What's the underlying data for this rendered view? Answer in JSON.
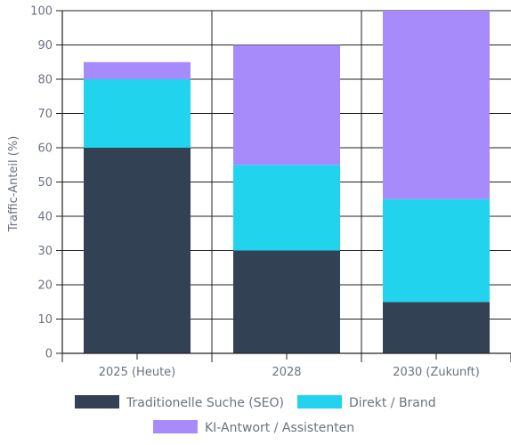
{
  "chart_data": {
    "type": "bar",
    "stacked": true,
    "categories": [
      "2025 (Heute)",
      "2028",
      "2030 (Zukunft)"
    ],
    "series": [
      {
        "name": "Traditionelle Suche (SEO)",
        "values": [
          60,
          30,
          15
        ],
        "color": "#334155"
      },
      {
        "name": "Direkt / Brand",
        "values": [
          20,
          25,
          30
        ],
        "color": "#22d3ee"
      },
      {
        "name": "KI-Antwort / Assistenten",
        "values": [
          5,
          35,
          55
        ],
        "color": "#a78bfa"
      }
    ],
    "ylabel": "Traffic-Anteil (%)",
    "ylim": [
      0,
      100
    ],
    "yticks": [
      0,
      10,
      20,
      30,
      40,
      50,
      60,
      70,
      80,
      90,
      100
    ],
    "grid": true,
    "legend_position": "bottom"
  }
}
